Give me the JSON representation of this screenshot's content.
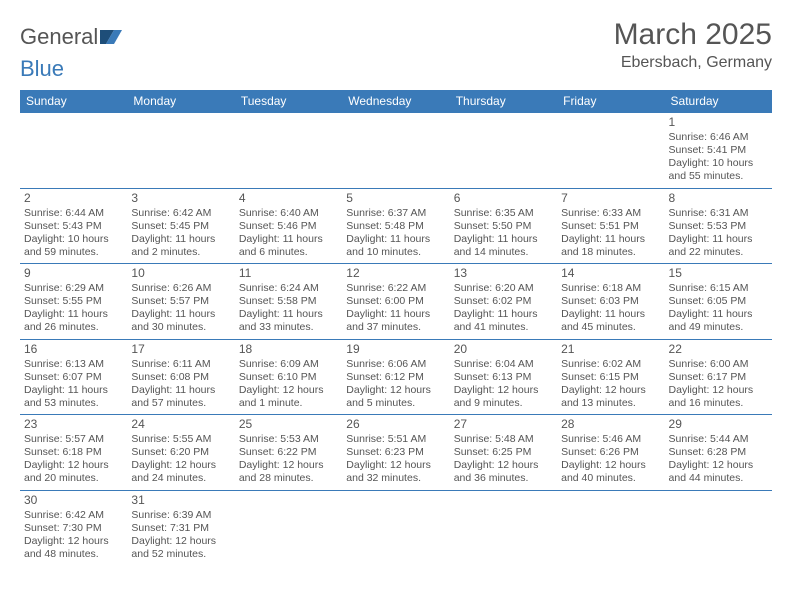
{
  "logo": {
    "word1": "General",
    "word2": "Blue"
  },
  "title": "March 2025",
  "location": "Ebersbach, Germany",
  "colors": {
    "header_bg": "#3a7ab8",
    "header_text": "#ffffff",
    "text": "#555555",
    "border": "#3a7ab8",
    "page_bg": "#ffffff"
  },
  "typography": {
    "title_fontsize": 30,
    "location_fontsize": 16,
    "dayhdr_fontsize": 12,
    "cell_fontsize": 10.5
  },
  "weekdays": [
    "Sunday",
    "Monday",
    "Tuesday",
    "Wednesday",
    "Thursday",
    "Friday",
    "Saturday"
  ],
  "weeks": [
    [
      null,
      null,
      null,
      null,
      null,
      null,
      {
        "n": "1",
        "sunrise": "Sunrise: 6:46 AM",
        "sunset": "Sunset: 5:41 PM",
        "daylight": "Daylight: 10 hours and 55 minutes."
      }
    ],
    [
      {
        "n": "2",
        "sunrise": "Sunrise: 6:44 AM",
        "sunset": "Sunset: 5:43 PM",
        "daylight": "Daylight: 10 hours and 59 minutes."
      },
      {
        "n": "3",
        "sunrise": "Sunrise: 6:42 AM",
        "sunset": "Sunset: 5:45 PM",
        "daylight": "Daylight: 11 hours and 2 minutes."
      },
      {
        "n": "4",
        "sunrise": "Sunrise: 6:40 AM",
        "sunset": "Sunset: 5:46 PM",
        "daylight": "Daylight: 11 hours and 6 minutes."
      },
      {
        "n": "5",
        "sunrise": "Sunrise: 6:37 AM",
        "sunset": "Sunset: 5:48 PM",
        "daylight": "Daylight: 11 hours and 10 minutes."
      },
      {
        "n": "6",
        "sunrise": "Sunrise: 6:35 AM",
        "sunset": "Sunset: 5:50 PM",
        "daylight": "Daylight: 11 hours and 14 minutes."
      },
      {
        "n": "7",
        "sunrise": "Sunrise: 6:33 AM",
        "sunset": "Sunset: 5:51 PM",
        "daylight": "Daylight: 11 hours and 18 minutes."
      },
      {
        "n": "8",
        "sunrise": "Sunrise: 6:31 AM",
        "sunset": "Sunset: 5:53 PM",
        "daylight": "Daylight: 11 hours and 22 minutes."
      }
    ],
    [
      {
        "n": "9",
        "sunrise": "Sunrise: 6:29 AM",
        "sunset": "Sunset: 5:55 PM",
        "daylight": "Daylight: 11 hours and 26 minutes."
      },
      {
        "n": "10",
        "sunrise": "Sunrise: 6:26 AM",
        "sunset": "Sunset: 5:57 PM",
        "daylight": "Daylight: 11 hours and 30 minutes."
      },
      {
        "n": "11",
        "sunrise": "Sunrise: 6:24 AM",
        "sunset": "Sunset: 5:58 PM",
        "daylight": "Daylight: 11 hours and 33 minutes."
      },
      {
        "n": "12",
        "sunrise": "Sunrise: 6:22 AM",
        "sunset": "Sunset: 6:00 PM",
        "daylight": "Daylight: 11 hours and 37 minutes."
      },
      {
        "n": "13",
        "sunrise": "Sunrise: 6:20 AM",
        "sunset": "Sunset: 6:02 PM",
        "daylight": "Daylight: 11 hours and 41 minutes."
      },
      {
        "n": "14",
        "sunrise": "Sunrise: 6:18 AM",
        "sunset": "Sunset: 6:03 PM",
        "daylight": "Daylight: 11 hours and 45 minutes."
      },
      {
        "n": "15",
        "sunrise": "Sunrise: 6:15 AM",
        "sunset": "Sunset: 6:05 PM",
        "daylight": "Daylight: 11 hours and 49 minutes."
      }
    ],
    [
      {
        "n": "16",
        "sunrise": "Sunrise: 6:13 AM",
        "sunset": "Sunset: 6:07 PM",
        "daylight": "Daylight: 11 hours and 53 minutes."
      },
      {
        "n": "17",
        "sunrise": "Sunrise: 6:11 AM",
        "sunset": "Sunset: 6:08 PM",
        "daylight": "Daylight: 11 hours and 57 minutes."
      },
      {
        "n": "18",
        "sunrise": "Sunrise: 6:09 AM",
        "sunset": "Sunset: 6:10 PM",
        "daylight": "Daylight: 12 hours and 1 minute."
      },
      {
        "n": "19",
        "sunrise": "Sunrise: 6:06 AM",
        "sunset": "Sunset: 6:12 PM",
        "daylight": "Daylight: 12 hours and 5 minutes."
      },
      {
        "n": "20",
        "sunrise": "Sunrise: 6:04 AM",
        "sunset": "Sunset: 6:13 PM",
        "daylight": "Daylight: 12 hours and 9 minutes."
      },
      {
        "n": "21",
        "sunrise": "Sunrise: 6:02 AM",
        "sunset": "Sunset: 6:15 PM",
        "daylight": "Daylight: 12 hours and 13 minutes."
      },
      {
        "n": "22",
        "sunrise": "Sunrise: 6:00 AM",
        "sunset": "Sunset: 6:17 PM",
        "daylight": "Daylight: 12 hours and 16 minutes."
      }
    ],
    [
      {
        "n": "23",
        "sunrise": "Sunrise: 5:57 AM",
        "sunset": "Sunset: 6:18 PM",
        "daylight": "Daylight: 12 hours and 20 minutes."
      },
      {
        "n": "24",
        "sunrise": "Sunrise: 5:55 AM",
        "sunset": "Sunset: 6:20 PM",
        "daylight": "Daylight: 12 hours and 24 minutes."
      },
      {
        "n": "25",
        "sunrise": "Sunrise: 5:53 AM",
        "sunset": "Sunset: 6:22 PM",
        "daylight": "Daylight: 12 hours and 28 minutes."
      },
      {
        "n": "26",
        "sunrise": "Sunrise: 5:51 AM",
        "sunset": "Sunset: 6:23 PM",
        "daylight": "Daylight: 12 hours and 32 minutes."
      },
      {
        "n": "27",
        "sunrise": "Sunrise: 5:48 AM",
        "sunset": "Sunset: 6:25 PM",
        "daylight": "Daylight: 12 hours and 36 minutes."
      },
      {
        "n": "28",
        "sunrise": "Sunrise: 5:46 AM",
        "sunset": "Sunset: 6:26 PM",
        "daylight": "Daylight: 12 hours and 40 minutes."
      },
      {
        "n": "29",
        "sunrise": "Sunrise: 5:44 AM",
        "sunset": "Sunset: 6:28 PM",
        "daylight": "Daylight: 12 hours and 44 minutes."
      }
    ],
    [
      {
        "n": "30",
        "sunrise": "Sunrise: 6:42 AM",
        "sunset": "Sunset: 7:30 PM",
        "daylight": "Daylight: 12 hours and 48 minutes."
      },
      {
        "n": "31",
        "sunrise": "Sunrise: 6:39 AM",
        "sunset": "Sunset: 7:31 PM",
        "daylight": "Daylight: 12 hours and 52 minutes."
      },
      null,
      null,
      null,
      null,
      null
    ]
  ]
}
